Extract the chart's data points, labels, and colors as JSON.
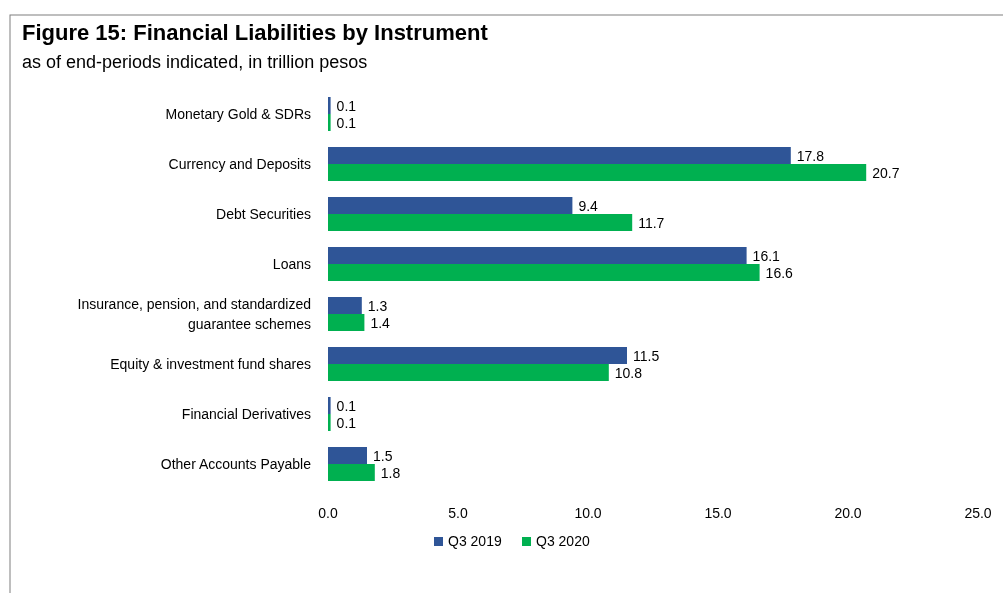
{
  "chart_data": {
    "type": "bar",
    "orientation": "horizontal",
    "title": "Figure 15: Financial Liabilities by Instrument",
    "subtitle": "as of end-periods indicated, in trillion pesos",
    "categories": [
      "Monetary Gold & SDRs",
      "Currency and Deposits",
      "Debt Securities",
      "Loans",
      "Insurance, pension, and standardized guarantee schemes",
      "Equity & investment fund shares",
      "Financial Derivatives",
      "Other Accounts Payable"
    ],
    "series": [
      {
        "name": "Q3 2019",
        "color": "#2f5597",
        "values": [
          0.1,
          17.8,
          9.4,
          16.1,
          1.3,
          11.5,
          0.1,
          1.5
        ]
      },
      {
        "name": "Q3 2020",
        "color": "#00b050",
        "values": [
          0.1,
          20.7,
          11.7,
          16.6,
          1.4,
          10.8,
          0.1,
          1.8
        ]
      }
    ],
    "xlim": [
      0,
      25
    ],
    "xticks": [
      {
        "value": 0,
        "label": "0.0"
      },
      {
        "value": 5,
        "label": "5.0"
      },
      {
        "value": 10,
        "label": "10.0"
      },
      {
        "value": 15,
        "label": "15.0"
      },
      {
        "value": 20,
        "label": "20.0"
      },
      {
        "value": 25,
        "label": "25.0"
      }
    ],
    "data_labels": true,
    "legend": "bottom",
    "grid": false
  }
}
